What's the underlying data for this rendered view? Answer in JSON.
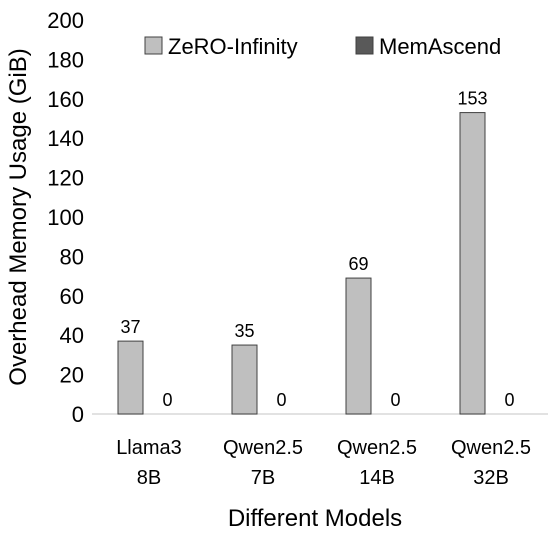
{
  "chart_data": {
    "type": "bar",
    "ylabel": "Overhead Memory Usage (GiB)",
    "xlabel": "Different Models",
    "ylim": [
      0,
      200
    ],
    "yticks": [
      0,
      20,
      40,
      60,
      80,
      100,
      120,
      140,
      160,
      180,
      200
    ],
    "categories": [
      [
        "Llama3",
        "8B"
      ],
      [
        "Qwen2.5",
        "7B"
      ],
      [
        "Qwen2.5",
        "14B"
      ],
      [
        "Qwen2.5",
        "32B"
      ]
    ],
    "series": [
      {
        "name": "ZeRO-Infinity",
        "color": "#bfbfbf",
        "values": [
          37,
          35,
          69,
          153
        ]
      },
      {
        "name": "MemAscend",
        "color": "#595959",
        "values": [
          0,
          0,
          0,
          0
        ]
      }
    ],
    "data_labels": true,
    "grid": false,
    "legend": "top"
  }
}
